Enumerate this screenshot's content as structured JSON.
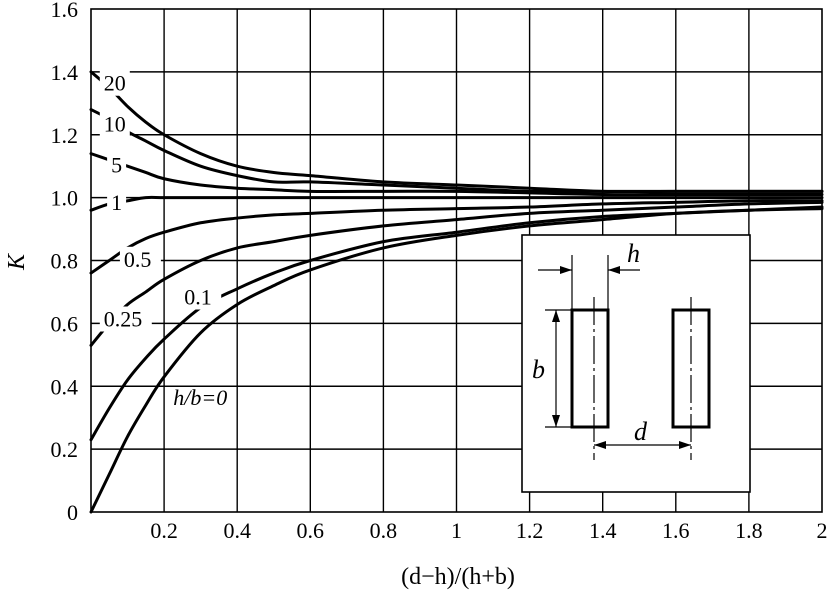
{
  "chart_data": {
    "type": "line",
    "xlabel": "(d−h)/(h+b)",
    "ylabel": "K",
    "xlim": [
      0,
      2
    ],
    "ylim": [
      0,
      1.6
    ],
    "grid": true,
    "x_ticks": [
      "0.2",
      "0.4",
      "0.6",
      "0.8",
      "1",
      "1.2",
      "1.4",
      "1.6",
      "1.8",
      "2"
    ],
    "y_ticks": [
      "0",
      "0.2",
      "0.4",
      "0.6",
      "0.8",
      "1.0",
      "1.2",
      "1.4",
      "1.6"
    ],
    "x": [
      0,
      0.05,
      0.1,
      0.15,
      0.2,
      0.3,
      0.4,
      0.5,
      0.6,
      0.8,
      1.0,
      1.2,
      1.4,
      1.6,
      1.8,
      2.0
    ],
    "series": [
      {
        "name": "20",
        "values": [
          1.4,
          1.35,
          1.29,
          1.24,
          1.2,
          1.14,
          1.1,
          1.08,
          1.07,
          1.05,
          1.04,
          1.03,
          1.02,
          1.02,
          1.02,
          1.02
        ]
      },
      {
        "name": "10",
        "values": [
          1.28,
          1.25,
          1.21,
          1.18,
          1.15,
          1.1,
          1.07,
          1.05,
          1.05,
          1.04,
          1.03,
          1.02,
          1.02,
          1.02,
          1.02,
          1.02
        ]
      },
      {
        "name": "5",
        "values": [
          1.14,
          1.12,
          1.1,
          1.08,
          1.06,
          1.04,
          1.03,
          1.025,
          1.02,
          1.02,
          1.02,
          1.015,
          1.01,
          1.01,
          1.01,
          1.01
        ]
      },
      {
        "name": "1",
        "values": [
          0.96,
          0.98,
          0.99,
          1.0,
          1.0,
          1.0,
          1.0,
          1.0,
          1.0,
          1.0,
          1.0,
          1.0,
          1.0,
          1.0,
          1.0,
          1.0
        ]
      },
      {
        "name": "0.5",
        "values": [
          0.76,
          0.8,
          0.84,
          0.87,
          0.89,
          0.92,
          0.935,
          0.945,
          0.95,
          0.96,
          0.965,
          0.97,
          0.98,
          0.985,
          0.99,
          0.99
        ]
      },
      {
        "name": "0.25",
        "values": [
          0.53,
          0.6,
          0.66,
          0.7,
          0.74,
          0.8,
          0.84,
          0.86,
          0.88,
          0.91,
          0.93,
          0.95,
          0.96,
          0.97,
          0.98,
          0.985
        ]
      },
      {
        "name": "0.1",
        "values": [
          0.23,
          0.33,
          0.42,
          0.49,
          0.55,
          0.65,
          0.71,
          0.76,
          0.8,
          0.86,
          0.89,
          0.92,
          0.94,
          0.95,
          0.96,
          0.97
        ]
      },
      {
        "name": "h/b=0",
        "values": [
          0.0,
          0.12,
          0.24,
          0.34,
          0.43,
          0.57,
          0.66,
          0.72,
          0.77,
          0.84,
          0.88,
          0.91,
          0.93,
          0.95,
          0.96,
          0.965
        ]
      }
    ],
    "curve_labels": [
      "20",
      "10",
      "5",
      "1",
      "0.5",
      "0.25",
      "0.1",
      "h/b=0"
    ],
    "inset": {
      "labels": [
        "h",
        "b",
        "d"
      ]
    }
  }
}
